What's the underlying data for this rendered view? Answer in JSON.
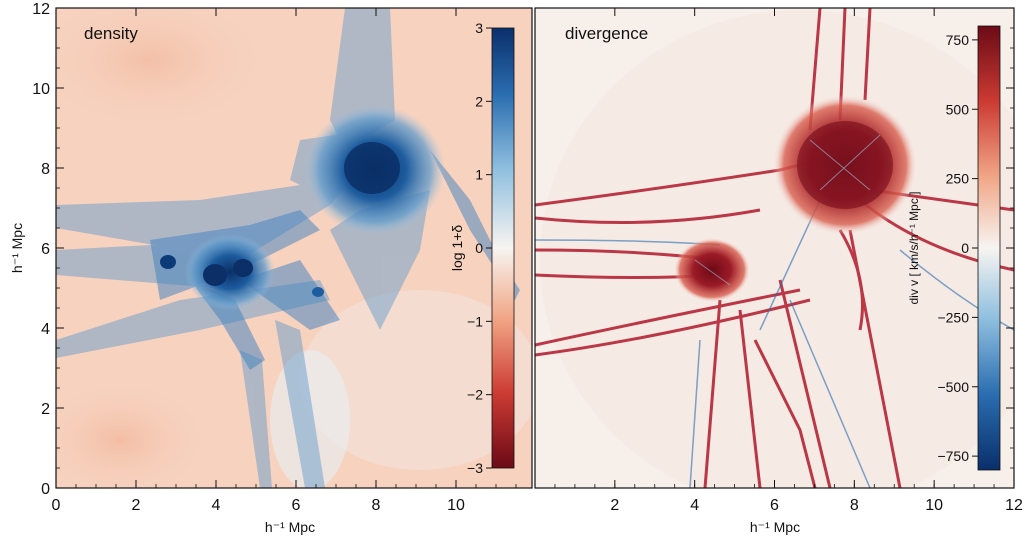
{
  "figure": {
    "left_panel": {
      "label": "density",
      "colorbar": {
        "label": "log 1+δ",
        "ticks": [
          "3",
          "2",
          "1",
          "0",
          "−1",
          "−2",
          "−3"
        ],
        "tick_values": [
          3,
          2,
          1,
          0,
          -1,
          -2,
          -3
        ],
        "range": [
          -3,
          3
        ],
        "colormap_top": "#0a2f6b",
        "colormap_bottom": "#6b0a16"
      }
    },
    "right_panel": {
      "label": "divergence",
      "colorbar": {
        "label": "div v  [ km/s/h⁻¹ Mpc ]",
        "ticks": [
          "750",
          "500",
          "250",
          "0",
          "−250",
          "−500",
          "−750"
        ],
        "tick_values": [
          750,
          500,
          250,
          0,
          -250,
          -500,
          -750
        ],
        "range": [
          -800,
          800
        ],
        "colormap_top": "#6b0a16",
        "colormap_bottom": "#0a2f6b"
      }
    },
    "axes": {
      "y_label": "h⁻¹ Mpc",
      "x_label_left": "h⁻¹ Mpc",
      "x_label_right": "h⁻¹ Mpc",
      "y_ticks": [
        "0",
        "2",
        "4",
        "6",
        "8",
        "10",
        "12"
      ],
      "x_ticks_left": [
        "0",
        "2",
        "4",
        "6",
        "8",
        "10"
      ],
      "x_ticks_right": [
        "2",
        "4",
        "6",
        "8",
        "10",
        "12"
      ],
      "y_range": [
        0,
        12
      ],
      "x_range": [
        0,
        12
      ]
    },
    "colors": {
      "background_warm": "#f6d2bf",
      "filament_blue": "#3b7bbf",
      "node_dark_blue": "#0d3b7a",
      "shock_red": "#b2182b"
    }
  }
}
